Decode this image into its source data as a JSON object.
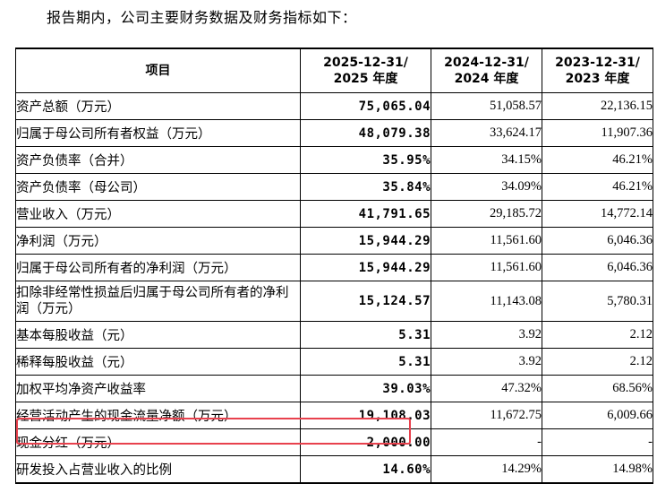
{
  "intro": "报告期内，公司主要财务数据及财务指标如下：",
  "header": {
    "item": "项目",
    "col1_line1": "2025-12-31/",
    "col1_line2": "2025 年度",
    "col2_line1": "2024-12-31/",
    "col2_line2": "2024 年度",
    "col3_line1": "2023-12-31/",
    "col3_line2": "2023 年度"
  },
  "rows": [
    {
      "label": "资产总额（万元）",
      "v1": "75,065.04",
      "v2": "51,058.57",
      "v3": "22,136.15"
    },
    {
      "label": "归属于母公司所有者权益（万元）",
      "v1": "48,079.38",
      "v2": "33,624.17",
      "v3": "11,907.36"
    },
    {
      "label": "资产负债率（合并）",
      "v1": "35.95%",
      "v2": "34.15%",
      "v3": "46.21%"
    },
    {
      "label": "资产负债率（母公司）",
      "v1": "35.84%",
      "v2": "34.09%",
      "v3": "46.21%"
    },
    {
      "label": "营业收入（万元）",
      "v1": "41,791.65",
      "v2": "29,185.72",
      "v3": "14,772.14"
    },
    {
      "label": "净利润（万元）",
      "v1": "15,944.29",
      "v2": "11,561.60",
      "v3": "6,046.36"
    },
    {
      "label": "归属于母公司所有者的净利润（万元）",
      "v1": "15,944.29",
      "v2": "11,561.60",
      "v3": "6,046.36"
    },
    {
      "label": "扣除非经常性损益后归属于母公司所有者的净利润（万元）",
      "v1": "15,124.57",
      "v2": "11,143.08",
      "v3": "5,780.31"
    },
    {
      "label": "基本每股收益（元）",
      "v1": "5.31",
      "v2": "3.92",
      "v3": "2.12"
    },
    {
      "label": "稀释每股收益（元）",
      "v1": "5.31",
      "v2": "3.92",
      "v3": "2.12"
    },
    {
      "label": "加权平均净资产收益率",
      "v1": "39.03%",
      "v2": "47.32%",
      "v3": "68.56%"
    },
    {
      "label": "经营活动产生的现金流量净额（万元）",
      "v1": "19,108.03",
      "v2": "11,672.75",
      "v3": "6,009.66"
    },
    {
      "label": "现金分红（万元）",
      "v1": "2,000.00",
      "v2": "-",
      "v3": "-"
    },
    {
      "label": "研发投入占营业收入的比例",
      "v1": "14.60%",
      "v2": "14.29%",
      "v3": "14.98%"
    }
  ],
  "highlight_color": "#e8414d"
}
